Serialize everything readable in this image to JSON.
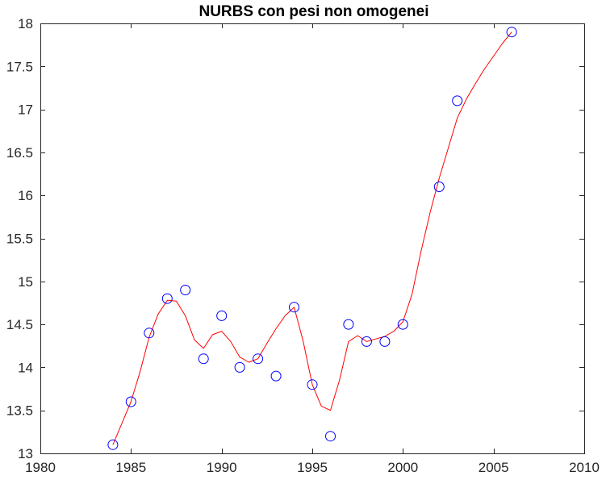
{
  "chart_data": {
    "type": "line",
    "title": "NURBS con pesi non omogenei",
    "xlabel": "",
    "ylabel": "",
    "xlim": [
      1980,
      2010
    ],
    "ylim": [
      13,
      18
    ],
    "xticks": [
      1980,
      1985,
      1990,
      1995,
      2000,
      2005,
      2010
    ],
    "yticks": [
      13,
      13.5,
      14,
      14.5,
      15,
      15.5,
      16,
      16.5,
      17,
      17.5,
      18
    ],
    "xtick_labels": [
      "1980",
      "1985",
      "1990",
      "1995",
      "2000",
      "2005",
      "2010"
    ],
    "ytick_labels": [
      "13",
      "13.5",
      "14",
      "14.5",
      "15",
      "15.5",
      "16",
      "16.5",
      "17",
      "17.5",
      "18"
    ],
    "grid": false,
    "series": [
      {
        "kind": "markers",
        "marker": "circle",
        "color": "#0000ff",
        "x": [
          1984,
          1985,
          1986,
          1987,
          1988,
          1989,
          1990,
          1991,
          1992,
          1993,
          1994,
          1995,
          1996,
          1997,
          1998,
          1999,
          2000,
          2002,
          2003,
          2006
        ],
        "y": [
          13.1,
          13.6,
          14.4,
          14.8,
          14.9,
          14.1,
          14.6,
          14.0,
          14.1,
          13.9,
          14.7,
          13.8,
          13.2,
          14.5,
          14.3,
          14.3,
          14.5,
          16.1,
          17.1,
          17.9
        ]
      },
      {
        "kind": "curve",
        "color": "#ff0000",
        "x": [
          1984,
          1984.5,
          1985,
          1985.5,
          1986,
          1986.5,
          1987,
          1987.5,
          1988,
          1988.5,
          1989,
          1989.5,
          1990,
          1990.5,
          1991,
          1991.5,
          1992,
          1992.5,
          1993,
          1993.5,
          1994,
          1994.5,
          1995,
          1995.5,
          1996,
          1996.5,
          1997,
          1997.5,
          1998,
          1998.5,
          1999,
          1999.5,
          2000,
          2000.5,
          2001,
          2001.5,
          2002,
          2002.5,
          2003,
          2003.5,
          2004,
          2004.5,
          2005,
          2005.5,
          2006
        ],
        "y": [
          13.1,
          13.35,
          13.6,
          13.95,
          14.35,
          14.62,
          14.78,
          14.77,
          14.6,
          14.32,
          14.22,
          14.38,
          14.42,
          14.3,
          14.12,
          14.06,
          14.1,
          14.28,
          14.45,
          14.6,
          14.7,
          14.3,
          13.8,
          13.55,
          13.5,
          13.85,
          14.3,
          14.37,
          14.3,
          14.33,
          14.36,
          14.42,
          14.53,
          14.85,
          15.35,
          15.8,
          16.2,
          16.55,
          16.9,
          17.12,
          17.3,
          17.47,
          17.62,
          17.77,
          17.9
        ]
      }
    ]
  }
}
